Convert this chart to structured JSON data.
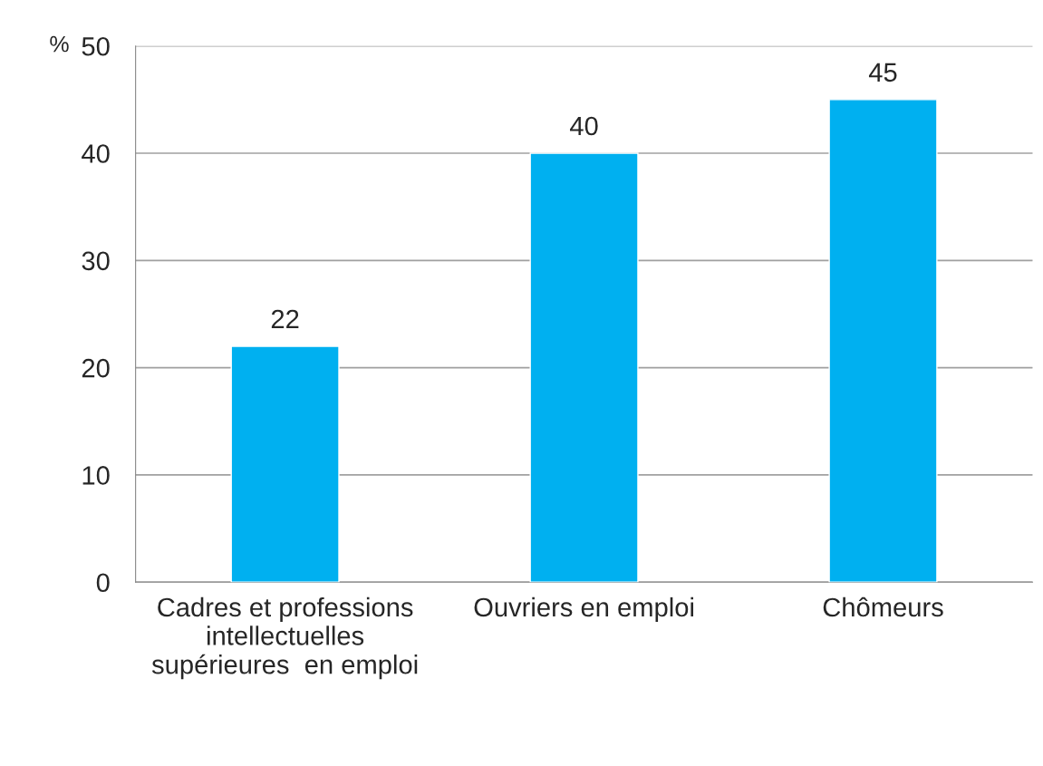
{
  "chart_data": {
    "type": "bar",
    "categories": [
      "Cadres et professions\nintellectuelles\nsupérieures  en emploi",
      "Ouvriers en emploi",
      "Chômeurs"
    ],
    "values": [
      22,
      40,
      45
    ],
    "color": "#00b0f0",
    "ylabel": "%",
    "ylim": [
      0,
      50
    ],
    "yticks": [
      0,
      10,
      20,
      30,
      40,
      50
    ],
    "grid": "y",
    "data_labels": true
  }
}
